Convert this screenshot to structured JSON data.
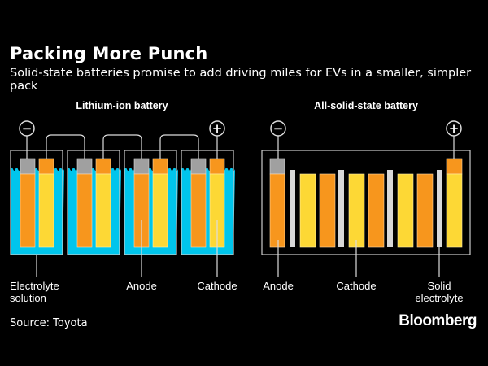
{
  "title": "Packing More Punch",
  "subtitle": "Solid-state batteries promise to add driving miles for EVs in a smaller, simpler pack",
  "left_diagram": {
    "heading": "Lithium-ion battery",
    "cells": 4,
    "labels": {
      "electrolyte": [
        "Electrolyte",
        "solution"
      ],
      "anode": "Anode",
      "cathode": "Cathode"
    },
    "terminals": {
      "negative": "−",
      "positive": "+"
    }
  },
  "right_diagram": {
    "heading": "All-solid-state battery",
    "labels": {
      "anode": "Anode",
      "cathode": "Cathode",
      "solid_electrolyte": [
        "Solid",
        "electrolyte"
      ]
    },
    "terminals": {
      "negative": "−",
      "positive": "+"
    }
  },
  "source": "Source: Toyota",
  "brand": "Bloomberg",
  "colors": {
    "anode": "#f7961d",
    "cathode": "#fdd835",
    "electrolyte": "#00c5ec",
    "terminal_cap": "#a0a0a0",
    "separator": "#d8d8d8"
  }
}
